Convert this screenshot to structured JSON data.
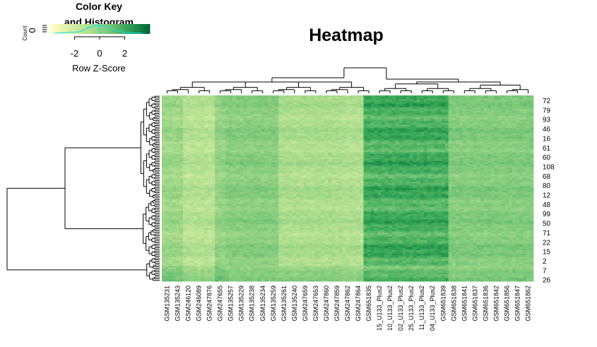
{
  "chart_data": {
    "type": "heatmap",
    "title": "Heatmap",
    "color_key": {
      "title_line1": "Color Key",
      "title_line2": "and Histogram",
      "xlabel": "Row Z-Score",
      "ylabel": "Count",
      "count_tick": "0",
      "ticks": [
        "-2",
        "0",
        "2"
      ],
      "range": [
        -4,
        4
      ],
      "colors": [
        "#ffffcc",
        "#d9f0a3",
        "#addd8e",
        "#78c679",
        "#31a354",
        "#006837"
      ]
    },
    "row_labels": [
      "72",
      "79",
      "93",
      "46",
      "16",
      "61",
      "60",
      "108",
      "68",
      "80",
      "12",
      "48",
      "99",
      "50",
      "71",
      "22",
      "15",
      "2",
      "7",
      "26"
    ],
    "column_labels": [
      "GSM135231",
      "GSM135243",
      "GSM246120",
      "GSM246089",
      "GSM247876",
      "GSM247655",
      "GSM135257",
      "GSM135229",
      "GSM135238",
      "GSM135234",
      "GSM135259",
      "GSM135261",
      "GSM135240",
      "GSM247659",
      "GSM247653",
      "GSM247860",
      "GSM247859",
      "GSM247862",
      "GSM247864",
      "GSM651835",
      "15_U133_Plus2",
      "10_U133_Plus2",
      "02_U133_Plus2",
      "25_U133_Plus2",
      "11_U133_Plus2",
      "04_U133_Plus2",
      "GSM651839",
      "GSM651838",
      "GSM651841",
      "GSM651837",
      "GSM651836",
      "GSM651842",
      "GSM651856",
      "GSM651847",
      "GSM651862"
    ],
    "column_group_levels": [
      -0.35,
      -1.15,
      -0.05,
      0.3,
      -0.8,
      -0.95,
      1.9,
      0.45
    ],
    "column_group_sizes": [
      2,
      3,
      1,
      5,
      6,
      2,
      8,
      8
    ],
    "row_count": 108
  }
}
